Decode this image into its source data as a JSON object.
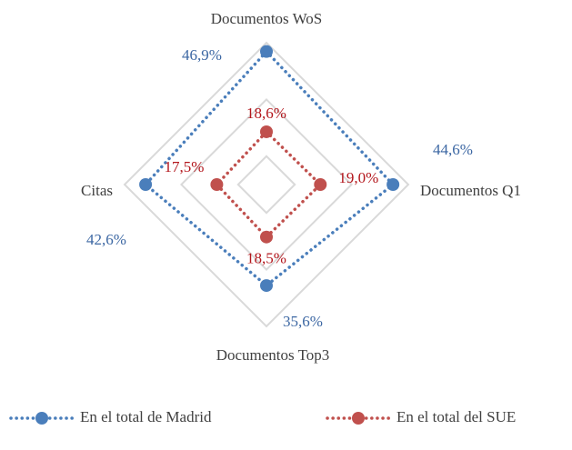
{
  "chart_data": {
    "type": "radar",
    "categories": [
      "Documentos WoS",
      "Documentos  Q1",
      "Documentos  Top3",
      "Citas"
    ],
    "series": [
      {
        "name": "En el total de Madrid",
        "color": "#4a7ebb",
        "label_color": "#3c67a3",
        "values": [
          46.9,
          44.6,
          35.6,
          42.6
        ],
        "value_labels": [
          "46,9%",
          "44,6%",
          "35,6%",
          "42,6%"
        ]
      },
      {
        "name": "En el total del SUE",
        "color": "#c0504d",
        "label_color": "#b3161c",
        "values": [
          18.6,
          19.0,
          18.5,
          17.5
        ],
        "value_labels": [
          "18,6%",
          "19,0%",
          "18,5%",
          "17,5%"
        ]
      }
    ],
    "ylim": [
      0,
      50
    ],
    "yticks": [
      10,
      30,
      50
    ],
    "grid": true,
    "legend": "bottom"
  }
}
